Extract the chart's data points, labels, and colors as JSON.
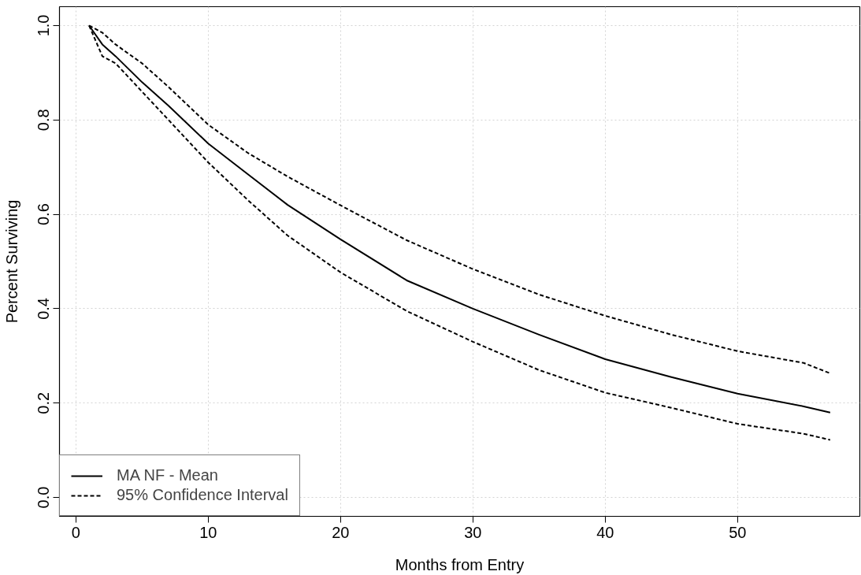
{
  "chart_data": {
    "type": "line",
    "xlabel": "Months from Entry",
    "ylabel": "Percent Surviving",
    "x": [
      1,
      2,
      3,
      5,
      7,
      10,
      13,
      16,
      20,
      25,
      30,
      35,
      40,
      45,
      50,
      55,
      57
    ],
    "series": [
      {
        "name": "MA NF - Mean",
        "color": "#000000",
        "line_style": "solid",
        "values": [
          1.0,
          0.96,
          0.935,
          0.88,
          0.83,
          0.75,
          0.685,
          0.62,
          0.547,
          0.46,
          0.4,
          0.345,
          0.293,
          0.255,
          0.22,
          0.193,
          0.18
        ]
      },
      {
        "name": "95% Confidence Interval",
        "color": "#000000",
        "line_style": "dashed",
        "values": [
          1.0,
          0.985,
          0.96,
          0.92,
          0.87,
          0.79,
          0.73,
          0.68,
          0.619,
          0.545,
          0.484,
          0.43,
          0.385,
          0.345,
          0.31,
          0.285,
          0.263
        ]
      },
      {
        "color": "#000000",
        "line_style": "dashed",
        "values": [
          1.0,
          0.935,
          0.92,
          0.86,
          0.8,
          0.71,
          0.63,
          0.555,
          0.477,
          0.395,
          0.33,
          0.27,
          0.222,
          0.19,
          0.156,
          0.135,
          0.122
        ]
      }
    ],
    "xlim": [
      -1.24,
      59.24
    ],
    "ylim": [
      -0.04,
      1.04
    ],
    "xticks": [
      0,
      10,
      20,
      30,
      40,
      50
    ],
    "yticks": [
      {
        "value": 0,
        "label": "0.0"
      },
      {
        "value": 0.2,
        "label": "0.2"
      },
      {
        "value": 0.4,
        "label": "0.4"
      },
      {
        "value": 0.6,
        "label": "0.6"
      },
      {
        "value": 0.8,
        "label": "0.8"
      },
      {
        "value": 1,
        "label": "1.0"
      }
    ],
    "grid": true,
    "legend": "bottom left",
    "marker": "none"
  }
}
